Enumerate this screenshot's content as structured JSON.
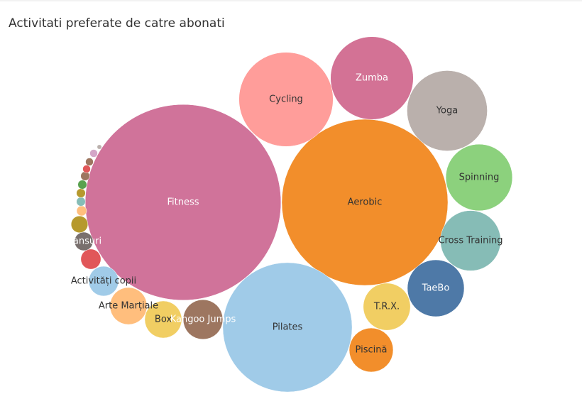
{
  "chart_data": {
    "type": "bubble",
    "title": "Activitati preferate de catre abonati",
    "categories": [
      "Fitness",
      "Aerobic",
      "Pilates",
      "Cycling",
      "Zumba",
      "Yoga",
      "Spinning",
      "Cross Training",
      "TaeBo",
      "T.R.X.",
      "Piscină",
      "Kangoo Jumps",
      "Box",
      "Arte Marțiale",
      "Activități copii",
      null,
      "Dansuri",
      null,
      null,
      null,
      null,
      null,
      null,
      null,
      null,
      null,
      null
    ],
    "values": [
      190,
      137,
      83,
      44,
      34,
      32,
      22,
      18,
      16,
      11,
      9.6,
      7.8,
      6.8,
      6.8,
      4.4,
      2,
      1.7,
      1.4,
      0.5,
      0.4,
      0.4,
      0.4,
      0.4,
      0.3,
      0.3,
      0.3,
      0.1
    ],
    "colors": [
      "#d0739a",
      "#f28e2b",
      "#a0cbe8",
      "#ff9d9a",
      "#d37295",
      "#bab0ac",
      "#8cd17d",
      "#86bcb6",
      "#4e79a7",
      "#f1ce63",
      "#f28e2b",
      "#9d7660",
      "#f1ce63",
      "#ffbe7d",
      "#a0cbe8",
      "#e15759",
      "#79706e",
      "#b6992d",
      "#ffbe7d",
      "#86bcb6",
      "#b6992d",
      "#59a14f",
      "#9d7660",
      "#e15759",
      "#9d7660",
      "#d4a6c8",
      "#bab0ac"
    ]
  }
}
